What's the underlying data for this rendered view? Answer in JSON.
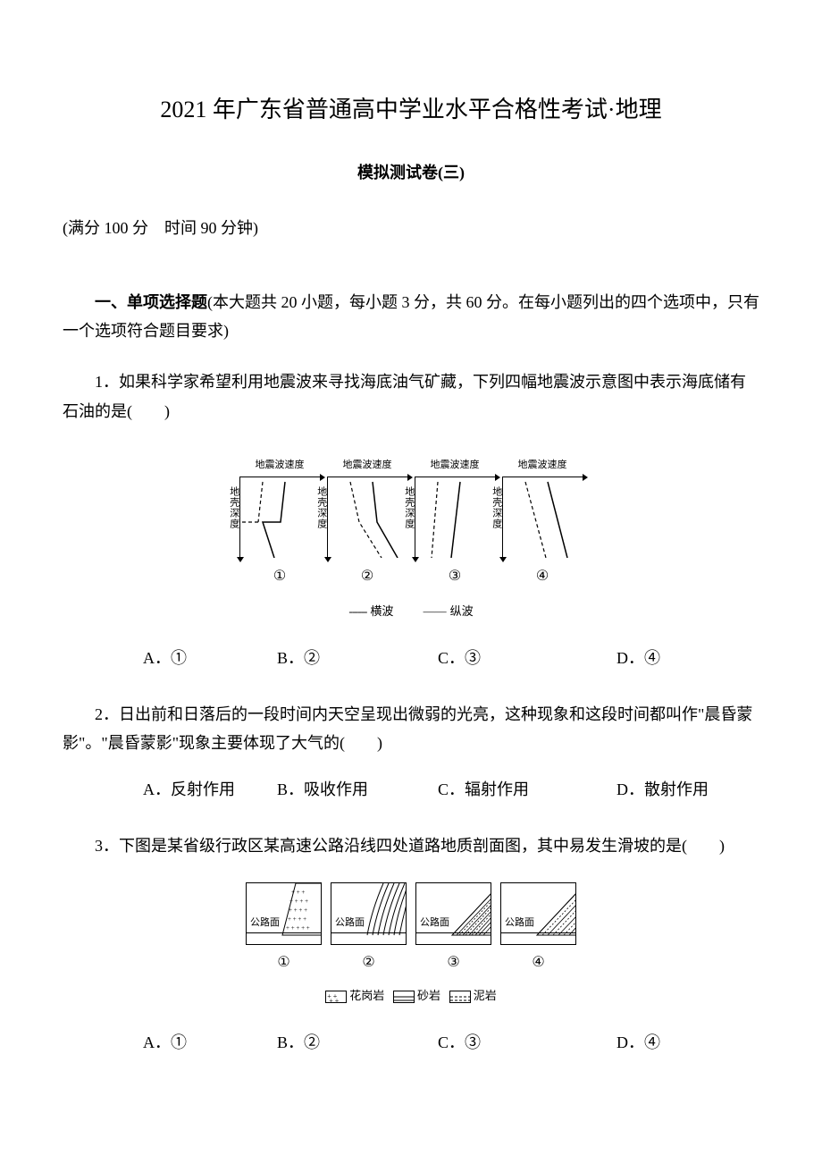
{
  "title": "2021 年广东省普通高中学业水平合格性考试·地理",
  "subtitle": "模拟测试卷(三)",
  "meta": "(满分 100 分　时间 90 分钟)",
  "section1": {
    "heading_bold": "一、单项选择题",
    "heading_rest": "(本大题共 20 小题，每小题 3 分，共 60 分。在每小题列出的四个选项中，只有一个选项符合题目要求)"
  },
  "q1": {
    "text": "1．如果科学家希望利用地震波来寻找海底油气矿藏，下列四幅地震波示意图中表示海底储有石油的是(　　)",
    "opts": {
      "a": "A．①",
      "b": "B．②",
      "c": "C．③",
      "d": "D．④"
    }
  },
  "seismic": {
    "xlabel": "地震波速度",
    "ylabel": "地壳深度",
    "nums": [
      "①",
      "②",
      "③",
      "④"
    ],
    "legend_hwave": "横波",
    "legend_vwave": "纵波",
    "dash_symbol": "------",
    "line_symbol": "——",
    "panels": [
      {
        "s_wave": [
          [
            25,
            5
          ],
          [
            20,
            50
          ],
          [
            20,
            50
          ],
          [
            0,
            50
          ],
          [
            0,
            90
          ]
        ],
        "p_wave": [
          [
            50,
            5
          ],
          [
            45,
            50
          ],
          [
            25,
            50
          ],
          [
            38,
            90
          ]
        ],
        "s_break": true
      },
      {
        "s_wave": [
          [
            25,
            5
          ],
          [
            35,
            50
          ],
          [
            60,
            90
          ]
        ],
        "p_wave": [
          [
            50,
            5
          ],
          [
            55,
            50
          ],
          [
            78,
            90
          ]
        ]
      },
      {
        "s_wave": [
          [
            25,
            5
          ],
          [
            18,
            90
          ]
        ],
        "p_wave": [
          [
            50,
            5
          ],
          [
            40,
            90
          ]
        ]
      },
      {
        "s_wave": [
          [
            25,
            5
          ],
          [
            48,
            90
          ]
        ],
        "p_wave": [
          [
            50,
            5
          ],
          [
            72,
            90
          ]
        ]
      }
    ]
  },
  "q2": {
    "text": "2．日出前和日落后的一段时间内天空呈现出微弱的光亮，这种现象和这段时间都叫作\"晨昏蒙影\"。\"晨昏蒙影\"现象主要体现了大气的(　　)",
    "opts": {
      "a": "A．反射作用",
      "b": "B．吸收作用",
      "c": "C．辐射作用",
      "d": "D．散射作用"
    }
  },
  "q3": {
    "text": "3．下图是某省级行政区某高速公路沿线四处道路地质剖面图，其中易发生滑坡的是(　　)",
    "opts": {
      "a": "A．①",
      "b": "B．②",
      "c": "C．③",
      "d": "D．④"
    }
  },
  "geo": {
    "road_label": "公路面",
    "nums": [
      "①",
      "②",
      "③",
      "④"
    ],
    "legend": {
      "granite": "花岗岩",
      "sandstone": "砂岩",
      "mudstone": "泥岩"
    }
  }
}
